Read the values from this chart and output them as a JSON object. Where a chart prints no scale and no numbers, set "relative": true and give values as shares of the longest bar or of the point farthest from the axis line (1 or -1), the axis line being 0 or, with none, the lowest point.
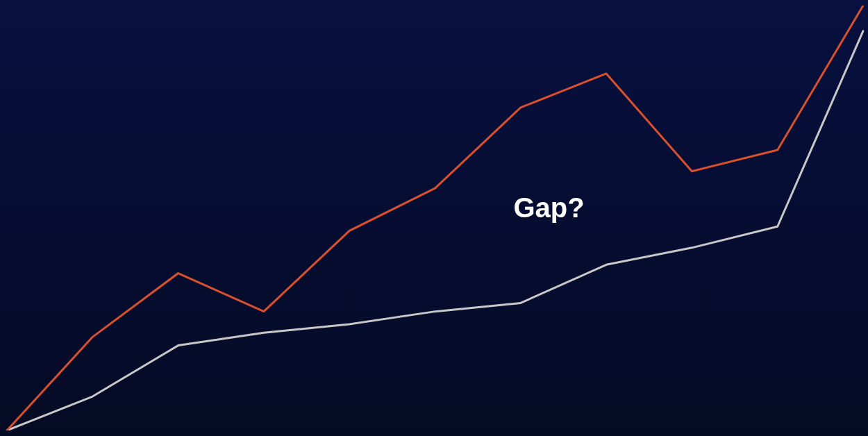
{
  "chart_data": {
    "type": "line",
    "relative": true,
    "categories": [
      null,
      null,
      null,
      null,
      null,
      null,
      null,
      null,
      null,
      null,
      null
    ],
    "series": [
      {
        "color": "#d9512c",
        "values": [
          0,
          0.22,
          0.37,
          0.28,
          0.47,
          0.57,
          0.76,
          0.84,
          0.61,
          0.66,
          1
        ]
      },
      {
        "color": "#c8c8c8",
        "values": [
          0,
          0.08,
          0.2,
          0.23,
          0.25,
          0.28,
          0.3,
          0.39,
          0.43,
          0.48,
          0.94
        ]
      }
    ],
    "annotations": [
      "Gap?"
    ],
    "legend": false,
    "marker": "none"
  }
}
